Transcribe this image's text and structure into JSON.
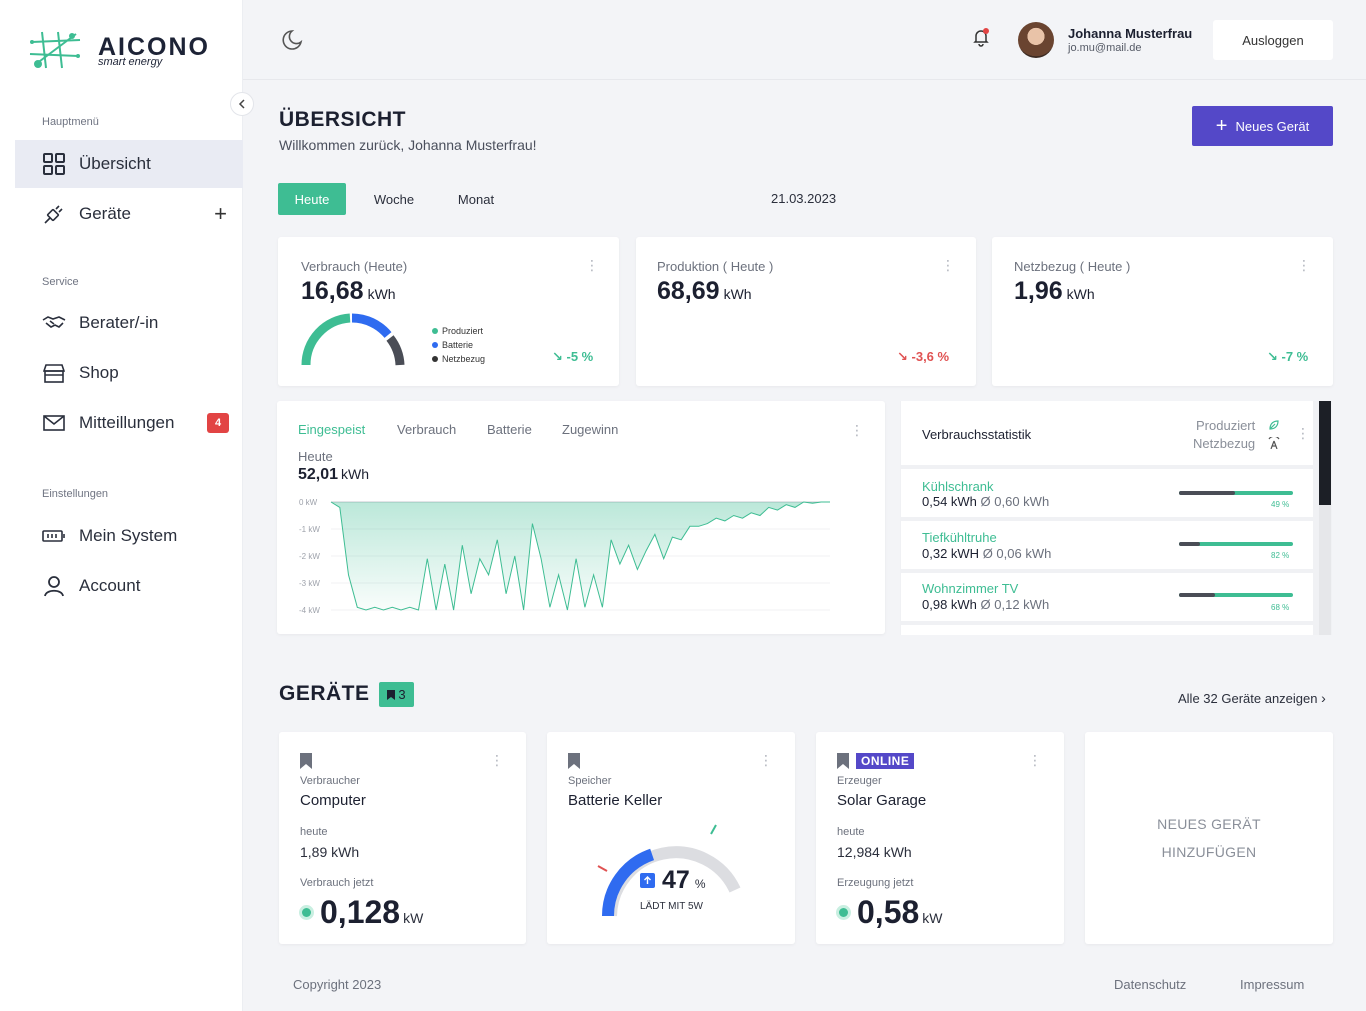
{
  "brand": {
    "name": "AICONO",
    "tagline": "smart energy"
  },
  "sidebar": {
    "sections": [
      {
        "label": "Hauptmenü"
      },
      {
        "label": "Service"
      },
      {
        "label": "Einstellungen"
      }
    ],
    "items": [
      {
        "label": "Übersicht",
        "icon": "grid-icon",
        "active": true
      },
      {
        "label": "Geräte",
        "icon": "plug-icon"
      },
      {
        "label": "Berater/-in",
        "icon": "handshake-icon"
      },
      {
        "label": "Shop",
        "icon": "store-icon"
      },
      {
        "label": "Mitteillungen",
        "icon": "mail-icon",
        "badge": "4"
      },
      {
        "label": "Mein System",
        "icon": "battery-icon"
      },
      {
        "label": "Account",
        "icon": "user-icon"
      }
    ]
  },
  "header": {
    "user_name": "Johanna Musterfrau",
    "user_email": "jo.mu@mail.de",
    "logout_label": "Ausloggen"
  },
  "main": {
    "title": "ÜBERSICHT",
    "subtitle": "Willkommen zurück, Johanna Musterfrau!",
    "new_device_label": "Neues Gerät",
    "period_tabs": [
      "Heute",
      "Woche",
      "Monat"
    ],
    "active_period": "Heute",
    "date": "21.03.2023"
  },
  "kpis": [
    {
      "label": "Verbrauch (Heute)",
      "value": "16,68",
      "unit": "kWh",
      "trend": "-5 %",
      "trend_dir": "good",
      "legend": [
        "Produziert",
        "Batterie",
        "Netzbezug"
      ]
    },
    {
      "label": "Produktion ( Heute )",
      "value": "68,69",
      "unit": "kWh",
      "trend": "-3,6 %",
      "trend_dir": "bad"
    },
    {
      "label": "Netzbezug ( Heute )",
      "value": "1,96",
      "unit": "kWh",
      "trend": "-7 %",
      "trend_dir": "good"
    }
  ],
  "colors": {
    "accent": "#3ebd93",
    "primary": "#5448c8",
    "blue": "#2f6bf0",
    "dark": "#4a4d56",
    "red": "#e05252"
  },
  "energy_chart": {
    "tabs": [
      "Eingespeist",
      "Verbrauch",
      "Batterie",
      "Zugewinn"
    ],
    "active_tab": "Eingespeist",
    "period_label": "Heute",
    "total_value": "52,01",
    "total_unit": "kWh"
  },
  "chart_data": {
    "type": "area",
    "y_ticks": [
      "0 kW",
      "-1 kW",
      "-2 kW",
      "-3 kW",
      "-4 kW"
    ],
    "ylim": [
      -4,
      0
    ],
    "values": [
      0,
      -0.2,
      -2.7,
      -3.9,
      -4.0,
      -3.9,
      -4.0,
      -3.9,
      -4.0,
      -3.9,
      -4.0,
      -2.1,
      -4.0,
      -2.3,
      -4.0,
      -1.6,
      -3.4,
      -2.1,
      -2.7,
      -1.4,
      -3.4,
      -2.0,
      -4.0,
      -0.8,
      -2.1,
      -3.9,
      -2.7,
      -4.0,
      -2.1,
      -3.9,
      -2.7,
      -3.9,
      -1.4,
      -2.3,
      -1.6,
      -2.5,
      -1.8,
      -1.2,
      -2.1,
      -1.3,
      -1.4,
      -0.9,
      -0.9,
      -0.8,
      -0.6,
      -0.7,
      -0.5,
      -0.6,
      -0.4,
      -0.5,
      -0.2,
      -0.3,
      -0.1,
      -0.2,
      0,
      -0.05,
      0,
      0
    ]
  },
  "consumption_stats": {
    "title": "Verbrauchsstatistik",
    "legend": [
      "Produziert",
      "Netzbezug"
    ],
    "rows": [
      {
        "name": "Kühlschrank",
        "value": "0,54 kWh",
        "avg": "Ø 0,60 kWh",
        "pct": "49 %",
        "dark_fraction": 0.49
      },
      {
        "name": "Tiefkühltruhe",
        "value": "0,32 kWH",
        "avg": "Ø 0,06 kWh",
        "pct": "82 %",
        "dark_fraction": 0.18
      },
      {
        "name": "Wohnzimmer TV",
        "value": "0,98 kWh",
        "avg": "Ø 0,12 kWh",
        "pct": "68 %",
        "dark_fraction": 0.32
      }
    ]
  },
  "devices_section": {
    "title": "GERÄTE",
    "count": "3",
    "all_link": "Alle 32 Geräte anzeigen"
  },
  "devices": [
    {
      "type": "Verbraucher",
      "name": "Computer",
      "today_label": "heute",
      "today_value": "1,89 kWh",
      "now_label": "Verbrauch jetzt",
      "now_value": "0,128",
      "now_unit": "kW"
    },
    {
      "type": "Speicher",
      "name": "Batterie Keller",
      "percent": "47",
      "percent_unit": "%",
      "status": "LÄDT MIT 5W",
      "charge_fraction": 0.47
    },
    {
      "badge": "ONLINE",
      "type": "Erzeuger",
      "name": "Solar Garage",
      "today_label": "heute",
      "today_value": "12,984 kWh",
      "now_label": "Erzeugung jetzt",
      "now_value": "0,58",
      "now_unit": "kW"
    }
  ],
  "add_device": {
    "line1": "NEUES GERÄT",
    "line2": "HINZUFÜGEN"
  },
  "footer": {
    "copyright": "Copyright 2023",
    "privacy": "Datenschutz",
    "imprint": "Impressum"
  }
}
